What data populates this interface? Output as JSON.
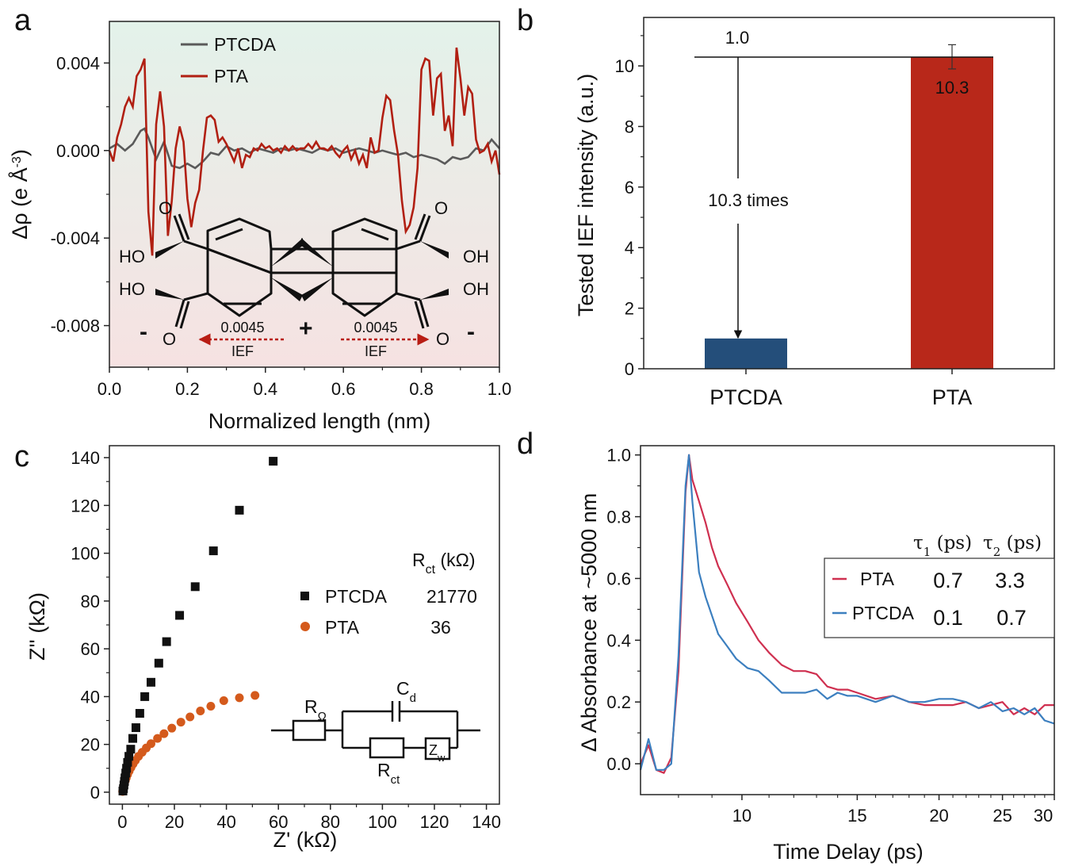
{
  "panels": {
    "a": {
      "letter": "a",
      "legend": [
        "PTCDA",
        "PTA"
      ],
      "ytitle_prefix": "Δρ (e Å",
      "ytitle_sup": "-3",
      "ytitle_suffix": ")",
      "xtitle": "Normalized length (nm)",
      "yticks": [
        "0.004",
        "0.000",
        "-0.004",
        "-0.008"
      ],
      "xticks": [
        "0.0",
        "0.2",
        "0.4",
        "0.6",
        "0.8",
        "1.0"
      ],
      "molecule": {
        "ho_left_top": "HO",
        "ho_left_bottom": "HO",
        "oh_right_top": "OH",
        "oh_right_bottom": "OH",
        "o_top_left": "O",
        "o_top_right": "O",
        "o_bottom_left": "O",
        "o_bottom_right": "O",
        "minus_left": "-",
        "minus_right": "-",
        "plus_center": "+",
        "ief_value_left": "0.0045",
        "ief_value_right": "0.0045",
        "ief_label_left": "IEF",
        "ief_label_right": "IEF"
      }
    },
    "b": {
      "letter": "b",
      "ytitle": "Tested IEF intensity (a.u.)",
      "yticks": [
        "0",
        "2",
        "4",
        "6",
        "8",
        "10"
      ],
      "ref_label": "1.0",
      "pta_label": "10.3",
      "ratio_label": "10.3 times"
    },
    "c": {
      "letter": "c",
      "ytitle": "Z'' (kΩ)",
      "xtitle": "Z' (kΩ)",
      "yticks": [
        "0",
        "20",
        "40",
        "60",
        "80",
        "100",
        "120",
        "140"
      ],
      "xticks": [
        "0",
        "20",
        "40",
        "60",
        "80",
        "100",
        "120",
        "140"
      ],
      "legend_header_main": "R",
      "legend_header_sub": "ct",
      "legend_header_unit": " (kΩ)",
      "legend_entries": [
        {
          "name": "PTCDA",
          "value": "21770"
        },
        {
          "name": "PTA",
          "value": "36"
        }
      ],
      "circuit": {
        "r_omega_main": "R",
        "r_omega_sub": "Ω",
        "cd_main": "C",
        "cd_sub": "d",
        "rct_main": "R",
        "rct_sub": "ct",
        "zw_main": "Z",
        "zw_sub": "w"
      }
    },
    "d": {
      "letter": "d",
      "ytitle": "Δ Absorbance at ~5000 nm",
      "xtitle": "Time Delay (ps)",
      "yticks": [
        "0.0",
        "0.2",
        "0.4",
        "0.6",
        "0.8",
        "1.0"
      ],
      "xticks": [
        "10",
        "15",
        "20",
        "25",
        "30"
      ],
      "tau1_main": "τ",
      "tau1_sub": "1",
      "tau1_unit": " (ps)",
      "tau2_main": "τ",
      "tau2_sub": "2",
      "tau2_unit": " (ps)",
      "legend_entries": [
        {
          "name": "PTA",
          "tau1": "0.7",
          "tau2": "3.3"
        },
        {
          "name": "PTCDA",
          "tau1": "0.1",
          "tau2": "0.7"
        }
      ]
    }
  },
  "colors": {
    "ptcda_line": "#5a5a5a",
    "pta_line": "#b11f12",
    "bar_ptcda": "#244e7a",
    "bar_pta": "#b8281a",
    "ief_arrow": "#b81d14",
    "c_ptcda": "#111111",
    "c_pta": "#d45a1c",
    "d_pta": "#cf3050",
    "d_ptcda": "#3c7fbf",
    "bg_top": "#e3f2ea",
    "bg_bottom": "#f6e2e2"
  },
  "chart_data": [
    {
      "panel": "a",
      "type": "line",
      "xlabel": "Normalized length (nm)",
      "ylabel": "Δρ (e Å-3)",
      "xlim": [
        0,
        1
      ],
      "ylim": [
        -0.0099,
        0.0059
      ],
      "series": [
        {
          "name": "PTCDA",
          "x": [
            0.0,
            0.02,
            0.04,
            0.06,
            0.08,
            0.09,
            0.1,
            0.12,
            0.14,
            0.16,
            0.18,
            0.2,
            0.22,
            0.24,
            0.26,
            0.28,
            0.3,
            0.32,
            0.34,
            0.36,
            0.38,
            0.4,
            0.42,
            0.44,
            0.46,
            0.48,
            0.5,
            0.52,
            0.54,
            0.56,
            0.58,
            0.6,
            0.62,
            0.64,
            0.66,
            0.68,
            0.7,
            0.72,
            0.74,
            0.76,
            0.78,
            0.8,
            0.82,
            0.84,
            0.86,
            0.88,
            0.9,
            0.92,
            0.94,
            0.96,
            0.98,
            1.0
          ],
          "y": [
            0.0001,
            0.0003,
            0.0,
            0.0003,
            0.0009,
            0.001,
            0.0006,
            -0.0004,
            0.0004,
            -0.0007,
            -0.0008,
            -0.0006,
            -0.0008,
            -0.0005,
            -0.0001,
            -0.0002,
            0.0002,
            0.0,
            0.0001,
            -0.0001,
            0.0001,
            0.0,
            -0.0001,
            0.0001,
            0.0,
            0.0001,
            0.0,
            -0.0001,
            0.0001,
            0.0,
            0.0001,
            -0.0001,
            0.0,
            0.0001,
            0.0,
            -0.0001,
            0.0,
            -0.0001,
            -0.0002,
            -0.0001,
            -0.0003,
            -0.0002,
            -0.0003,
            -0.0004,
            -0.0006,
            -0.0003,
            -0.0004,
            -0.0003,
            0.0001,
            0.0,
            0.0005,
            0.0001
          ]
        },
        {
          "name": "PTA",
          "x": [
            0.0,
            0.01,
            0.02,
            0.03,
            0.04,
            0.05,
            0.06,
            0.07,
            0.08,
            0.09,
            0.1,
            0.11,
            0.12,
            0.13,
            0.14,
            0.15,
            0.16,
            0.17,
            0.18,
            0.19,
            0.2,
            0.21,
            0.22,
            0.23,
            0.24,
            0.25,
            0.26,
            0.27,
            0.28,
            0.29,
            0.3,
            0.31,
            0.32,
            0.33,
            0.34,
            0.35,
            0.36,
            0.37,
            0.38,
            0.39,
            0.4,
            0.41,
            0.42,
            0.43,
            0.44,
            0.45,
            0.46,
            0.47,
            0.48,
            0.49,
            0.5,
            0.51,
            0.52,
            0.53,
            0.54,
            0.55,
            0.56,
            0.57,
            0.58,
            0.59,
            0.6,
            0.61,
            0.62,
            0.63,
            0.64,
            0.65,
            0.66,
            0.67,
            0.68,
            0.69,
            0.7,
            0.71,
            0.72,
            0.73,
            0.74,
            0.75,
            0.76,
            0.77,
            0.78,
            0.79,
            0.8,
            0.81,
            0.82,
            0.83,
            0.84,
            0.85,
            0.86,
            0.87,
            0.88,
            0.89,
            0.9,
            0.91,
            0.92,
            0.93,
            0.94,
            0.95,
            0.96,
            0.97,
            0.98,
            0.99,
            1.0
          ],
          "y": [
            0.0,
            -0.0005,
            0.0006,
            0.0012,
            0.002,
            0.0024,
            0.002,
            0.0034,
            0.0037,
            0.0042,
            -0.0028,
            -0.0048,
            0.0012,
            0.0027,
            0.0011,
            -0.0039,
            -0.0023,
            0.0001,
            0.0011,
            0.0004,
            -0.0022,
            -0.0035,
            -0.0024,
            -0.0018,
            0.0,
            0.0015,
            0.0016,
            0.0014,
            0.0004,
            0.0006,
            0.0003,
            -0.0001,
            -0.0005,
            0.0001,
            -0.0008,
            -0.0002,
            -0.0003,
            0.0001,
            0.0,
            0.0003,
            0.0001,
            0.0002,
            0.0,
            0.0001,
            -0.0001,
            0.0002,
            0.0,
            0.0002,
            0.0,
            0.0001,
            0.0001,
            0.0003,
            0.0001,
            0.0004,
            0.0001,
            0.0001,
            0.0,
            0.0002,
            -0.0001,
            -0.0003,
            0.0,
            0.0002,
            -0.0004,
            0.0,
            -0.0006,
            -0.0002,
            -0.0008,
            0.0006,
            -0.0001,
            0.0,
            0.0015,
            0.0025,
            0.0023,
            0.0009,
            -0.0002,
            -0.0023,
            -0.0037,
            -0.0034,
            -0.0026,
            -0.0008,
            0.0037,
            0.0042,
            0.0041,
            0.0016,
            0.0033,
            0.0035,
            0.0009,
            0.0016,
            0.0002,
            0.0047,
            0.0033,
            0.0016,
            0.0029,
            0.0026,
            0.0005,
            -0.0001,
            0.0,
            0.0003,
            -0.0005,
            0.0,
            -0.0011
          ]
        }
      ]
    },
    {
      "panel": "b",
      "type": "bar",
      "categories": [
        "PTCDA",
        "PTA"
      ],
      "values": [
        1.0,
        10.3
      ],
      "errors": [
        0.0,
        0.4
      ],
      "ylabel": "Tested IEF intensity (a.u.)",
      "ylim": [
        0,
        11.6
      ],
      "annotations": [
        "1.0",
        "10.3",
        "10.3 times"
      ]
    },
    {
      "panel": "c",
      "type": "scatter",
      "xlabel": "Z' (kΩ)",
      "ylabel": "Z'' (kΩ)",
      "xlim": [
        -5,
        145
      ],
      "ylim": [
        -5,
        145
      ],
      "series": [
        {
          "name": "PTCDA",
          "x": [
            0.2,
            0.4,
            0.6,
            0.8,
            1.0,
            1.3,
            1.6,
            2.0,
            2.5,
            3.2,
            4.0,
            5.2,
            6.7,
            8.6,
            11,
            14,
            17,
            22,
            28,
            35,
            45,
            58
          ],
          "y": [
            0.5,
            1.5,
            3,
            4.5,
            6,
            8,
            10,
            12.5,
            15,
            18,
            22.5,
            27,
            33,
            40,
            46,
            54,
            63,
            74,
            86,
            101,
            118,
            138.5
          ]
        },
        {
          "name": "PTA",
          "x": [
            0.1,
            0.3,
            0.5,
            0.8,
            1.1,
            1.5,
            2.0,
            2.6,
            3.3,
            4.1,
            5.0,
            6.2,
            7.6,
            9.2,
            11,
            13.5,
            16,
            19,
            22.5,
            26,
            30,
            34,
            39,
            45,
            51
          ],
          "y": [
            0.3,
            1.5,
            2.5,
            3.6,
            4.8,
            6,
            7.4,
            8.8,
            10.3,
            11.8,
            13.3,
            15,
            16.7,
            18.5,
            20.3,
            22.5,
            24.5,
            26.8,
            29.3,
            31.5,
            34,
            36,
            38.3,
            39.5,
            40.5
          ]
        }
      ],
      "legend": {
        "PTCDA": "21770",
        "PTA": "36"
      }
    },
    {
      "panel": "d",
      "type": "line",
      "xlabel": "Time Delay (ps)",
      "ylabel": "Δ Absorbance at ~5000 nm",
      "xscale": "log",
      "xlim": [
        7.0,
        30.0
      ],
      "ylim": [
        -0.1,
        1.03
      ],
      "series": [
        {
          "name": "PTA",
          "tau1_ps": 0.7,
          "tau2_ps": 3.3,
          "x": [
            7.0,
            7.2,
            7.4,
            7.6,
            7.8,
            8.0,
            8.2,
            8.3,
            8.4,
            8.6,
            8.8,
            9.0,
            9.2,
            9.5,
            9.8,
            10.2,
            10.6,
            11.0,
            11.5,
            12.0,
            12.5,
            13.0,
            13.5,
            14.0,
            14.5,
            15.0,
            16.0,
            17.0,
            18.0,
            19.0,
            20.0,
            21.0,
            22.0,
            23.0,
            24.0,
            25.0,
            26.0,
            27.0,
            28.0,
            29.0,
            30.0
          ],
          "y": [
            0.0,
            0.06,
            -0.02,
            -0.03,
            0.02,
            0.3,
            0.88,
            1.0,
            0.92,
            0.85,
            0.78,
            0.7,
            0.64,
            0.58,
            0.52,
            0.46,
            0.4,
            0.36,
            0.32,
            0.3,
            0.3,
            0.29,
            0.25,
            0.24,
            0.24,
            0.23,
            0.21,
            0.22,
            0.2,
            0.19,
            0.19,
            0.19,
            0.2,
            0.18,
            0.19,
            0.2,
            0.16,
            0.18,
            0.16,
            0.19,
            0.19
          ]
        },
        {
          "name": "PTCDA",
          "tau1_ps": 0.1,
          "tau2_ps": 0.7,
          "x": [
            7.0,
            7.2,
            7.4,
            7.6,
            7.8,
            8.0,
            8.2,
            8.3,
            8.4,
            8.6,
            8.8,
            9.0,
            9.2,
            9.5,
            9.8,
            10.2,
            10.6,
            11.0,
            11.5,
            12.0,
            12.5,
            13.0,
            13.5,
            14.0,
            14.5,
            15.0,
            16.0,
            17.0,
            18.0,
            19.0,
            20.0,
            21.0,
            22.0,
            23.0,
            24.0,
            25.0,
            26.0,
            27.0,
            28.0,
            29.0,
            30.0
          ],
          "y": [
            -0.02,
            0.08,
            -0.02,
            -0.02,
            0.0,
            0.35,
            0.9,
            1.0,
            0.85,
            0.62,
            0.54,
            0.48,
            0.42,
            0.38,
            0.34,
            0.31,
            0.3,
            0.27,
            0.23,
            0.23,
            0.23,
            0.24,
            0.21,
            0.23,
            0.22,
            0.22,
            0.2,
            0.22,
            0.2,
            0.2,
            0.21,
            0.21,
            0.2,
            0.18,
            0.2,
            0.17,
            0.18,
            0.16,
            0.18,
            0.14,
            0.13
          ]
        }
      ]
    }
  ]
}
